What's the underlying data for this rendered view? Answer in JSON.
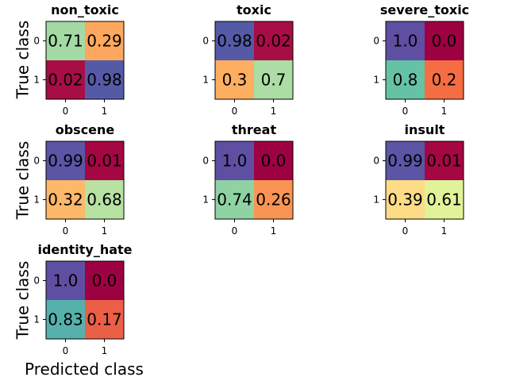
{
  "chart_data": [
    {
      "type": "heatmap",
      "title": "non_toxic",
      "x_ticks": [
        "0",
        "1"
      ],
      "y_ticks": [
        "0",
        "1"
      ],
      "values": [
        [
          0.71,
          0.29
        ],
        [
          0.02,
          0.98
        ]
      ],
      "labels": [
        [
          "0.71",
          "0.29"
        ],
        [
          "0.02",
          "0.98"
        ]
      ]
    },
    {
      "type": "heatmap",
      "title": "toxic",
      "x_ticks": [
        "0",
        "1"
      ],
      "y_ticks": [
        "0",
        "1"
      ],
      "values": [
        [
          0.98,
          0.02
        ],
        [
          0.3,
          0.7
        ]
      ],
      "labels": [
        [
          "0.98",
          "0.02"
        ],
        [
          "0.3",
          "0.7"
        ]
      ]
    },
    {
      "type": "heatmap",
      "title": "severe_toxic",
      "x_ticks": [
        "0",
        "1"
      ],
      "y_ticks": [
        "0",
        "1"
      ],
      "values": [
        [
          1.0,
          0.0
        ],
        [
          0.8,
          0.2
        ]
      ],
      "labels": [
        [
          "1.0",
          "0.0"
        ],
        [
          "0.8",
          "0.2"
        ]
      ]
    },
    {
      "type": "heatmap",
      "title": "obscene",
      "x_ticks": [
        "0",
        "1"
      ],
      "y_ticks": [
        "0",
        "1"
      ],
      "values": [
        [
          0.99,
          0.01
        ],
        [
          0.32,
          0.68
        ]
      ],
      "labels": [
        [
          "0.99",
          "0.01"
        ],
        [
          "0.32",
          "0.68"
        ]
      ]
    },
    {
      "type": "heatmap",
      "title": "threat",
      "x_ticks": [
        "0",
        "1"
      ],
      "y_ticks": [
        "0",
        "1"
      ],
      "values": [
        [
          1.0,
          0.0
        ],
        [
          0.74,
          0.26
        ]
      ],
      "labels": [
        [
          "1.0",
          "0.0"
        ],
        [
          "0.74",
          "0.26"
        ]
      ]
    },
    {
      "type": "heatmap",
      "title": "insult",
      "x_ticks": [
        "0",
        "1"
      ],
      "y_ticks": [
        "0",
        "1"
      ],
      "values": [
        [
          0.99,
          0.01
        ],
        [
          0.39,
          0.61
        ]
      ],
      "labels": [
        [
          "0.99",
          "0.01"
        ],
        [
          "0.39",
          "0.61"
        ]
      ]
    },
    {
      "type": "heatmap",
      "title": "identity_hate",
      "x_ticks": [
        "0",
        "1"
      ],
      "y_ticks": [
        "0",
        "1"
      ],
      "values": [
        [
          1.0,
          0.0
        ],
        [
          0.83,
          0.17
        ]
      ],
      "labels": [
        [
          "1.0",
          "0.0"
        ],
        [
          "0.83",
          "0.17"
        ]
      ]
    }
  ],
  "axes": {
    "ylabel": "True class",
    "xlabel": "Predicted class"
  },
  "colormap": {
    "name": "Spectral",
    "stops": [
      "#9e0142",
      "#d53e4f",
      "#f46d43",
      "#fdae61",
      "#fee08b",
      "#ffffbf",
      "#e6f598",
      "#abdda4",
      "#66c2a5",
      "#3288bd",
      "#5e4fa2"
    ],
    "vmin": 0,
    "vmax": 1
  }
}
